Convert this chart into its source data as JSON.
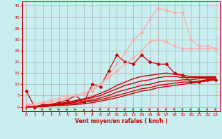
{
  "title": "",
  "xlabel": "Vent moyen/en rafales ( km/h )",
  "background_color": "#c8eef0",
  "grid_color": "#b0b0b0",
  "xlim": [
    -0.5,
    23.5
  ],
  "ylim": [
    -2,
    47
  ],
  "yticks": [
    0,
    5,
    10,
    15,
    20,
    25,
    30,
    35,
    40,
    45
  ],
  "xticks": [
    0,
    1,
    2,
    3,
    4,
    5,
    6,
    7,
    8,
    9,
    10,
    11,
    12,
    13,
    14,
    15,
    16,
    17,
    18,
    19,
    20,
    21,
    22,
    23
  ],
  "lines": [
    {
      "x": [
        0,
        1,
        2,
        3,
        4,
        5,
        6,
        7,
        8,
        9,
        10,
        11,
        12,
        13,
        14,
        15,
        16,
        17,
        18,
        19,
        20,
        21,
        22,
        23
      ],
      "y": [
        0,
        0,
        0,
        0.3,
        0.5,
        0.7,
        1.0,
        1.3,
        1.8,
        2.5,
        3.2,
        4.0,
        5.0,
        6.0,
        7.0,
        7.5,
        8.5,
        9.0,
        9.5,
        10.0,
        10.5,
        11.0,
        11.5,
        12.0
      ],
      "color": "#cc0000",
      "lw": 1.0,
      "marker": null,
      "alpha": 1.0
    },
    {
      "x": [
        0,
        1,
        2,
        3,
        4,
        5,
        6,
        7,
        8,
        9,
        10,
        11,
        12,
        13,
        14,
        15,
        16,
        17,
        18,
        19,
        20,
        21,
        22,
        23
      ],
      "y": [
        0,
        0,
        0.2,
        0.5,
        0.8,
        1.2,
        1.5,
        2.0,
        2.5,
        3.2,
        4.0,
        5.0,
        6.0,
        7.0,
        8.0,
        8.5,
        9.5,
        10.0,
        10.5,
        11.0,
        11.0,
        11.5,
        12.0,
        12.5
      ],
      "color": "#cc0000",
      "lw": 1.0,
      "marker": null,
      "alpha": 1.0
    },
    {
      "x": [
        0,
        1,
        2,
        3,
        4,
        5,
        6,
        7,
        8,
        9,
        10,
        11,
        12,
        13,
        14,
        15,
        16,
        17,
        18,
        19,
        20,
        21,
        22,
        23
      ],
      "y": [
        0,
        0,
        0.3,
        0.6,
        1.0,
        1.5,
        2.0,
        2.5,
        3.0,
        4.0,
        5.0,
        6.5,
        7.5,
        8.5,
        9.5,
        10.0,
        11.0,
        11.5,
        11.5,
        12.0,
        12.0,
        12.5,
        12.5,
        13.0
      ],
      "color": "#cc0000",
      "lw": 1.0,
      "marker": null,
      "alpha": 1.0
    },
    {
      "x": [
        0,
        1,
        2,
        3,
        4,
        5,
        6,
        7,
        8,
        9,
        10,
        11,
        12,
        13,
        14,
        15,
        16,
        17,
        18,
        19,
        20,
        21,
        22,
        23
      ],
      "y": [
        0,
        0,
        0.4,
        0.8,
        1.2,
        1.8,
        2.5,
        3.2,
        4.0,
        5.0,
        6.5,
        8.0,
        9.5,
        10.5,
        11.5,
        12.0,
        13.0,
        13.5,
        13.5,
        13.0,
        13.0,
        13.0,
        13.0,
        13.0
      ],
      "color": "#cc0000",
      "lw": 1.0,
      "marker": null,
      "alpha": 1.0
    },
    {
      "x": [
        0,
        1,
        2,
        3,
        4,
        5,
        6,
        7,
        8,
        9,
        10,
        11,
        12,
        13,
        14,
        15,
        16,
        17,
        18,
        19,
        20,
        21,
        22,
        23
      ],
      "y": [
        0,
        0,
        0.5,
        1.0,
        1.5,
        2.0,
        2.8,
        3.5,
        4.5,
        6.0,
        7.5,
        9.5,
        11.0,
        12.5,
        13.5,
        14.0,
        14.5,
        15.0,
        14.5,
        14.0,
        13.5,
        13.5,
        13.5,
        13.5
      ],
      "color": "#cc0000",
      "lw": 1.0,
      "marker": null,
      "alpha": 1.0
    },
    {
      "x": [
        0,
        1,
        2,
        3,
        4,
        5,
        6,
        7,
        8,
        9,
        10,
        11,
        12,
        13,
        14,
        15,
        16,
        17,
        18,
        19,
        20,
        21,
        22,
        23
      ],
      "y": [
        7,
        0,
        1,
        1,
        2,
        3,
        5,
        2,
        10,
        9,
        16,
        23,
        20,
        19,
        23,
        20,
        19,
        19,
        15,
        14,
        11,
        11,
        12,
        12
      ],
      "color": "#cc0000",
      "lw": 0.9,
      "marker": "D",
      "markersize": 2.0,
      "alpha": 1.0
    },
    {
      "x": [
        0,
        1,
        2,
        3,
        4,
        5,
        6,
        7,
        8,
        9,
        10,
        11,
        12,
        13,
        14,
        15,
        16,
        17,
        18,
        19,
        20,
        21,
        22,
        23
      ],
      "y": [
        1,
        1,
        2,
        2,
        3,
        4,
        5,
        6,
        8,
        10,
        13,
        16,
        19,
        22,
        25,
        29,
        30,
        29,
        27,
        26,
        26,
        26,
        26,
        26
      ],
      "color": "#ffaaaa",
      "lw": 0.9,
      "marker": "o",
      "markersize": 2.0,
      "alpha": 1.0
    },
    {
      "x": [
        0,
        1,
        2,
        3,
        4,
        5,
        6,
        7,
        8,
        9,
        10,
        11,
        12,
        13,
        14,
        15,
        16,
        17,
        18,
        19,
        20,
        21,
        22,
        23
      ],
      "y": [
        1,
        1,
        2,
        3,
        4,
        5,
        5,
        6,
        7,
        10,
        14,
        19,
        24,
        30,
        33,
        39,
        44,
        43,
        42,
        42,
        30,
        27,
        27,
        26
      ],
      "color": "#ffaaaa",
      "lw": 0.9,
      "marker": "o",
      "markersize": 2.0,
      "alpha": 1.0
    }
  ],
  "arrow_directions": [
    0,
    0,
    90,
    90,
    90,
    90,
    90,
    180,
    180,
    225,
    225,
    225,
    225,
    315,
    315,
    315,
    315,
    315,
    315,
    315,
    315,
    315,
    315,
    315
  ],
  "arrow_color": "#cc0000"
}
